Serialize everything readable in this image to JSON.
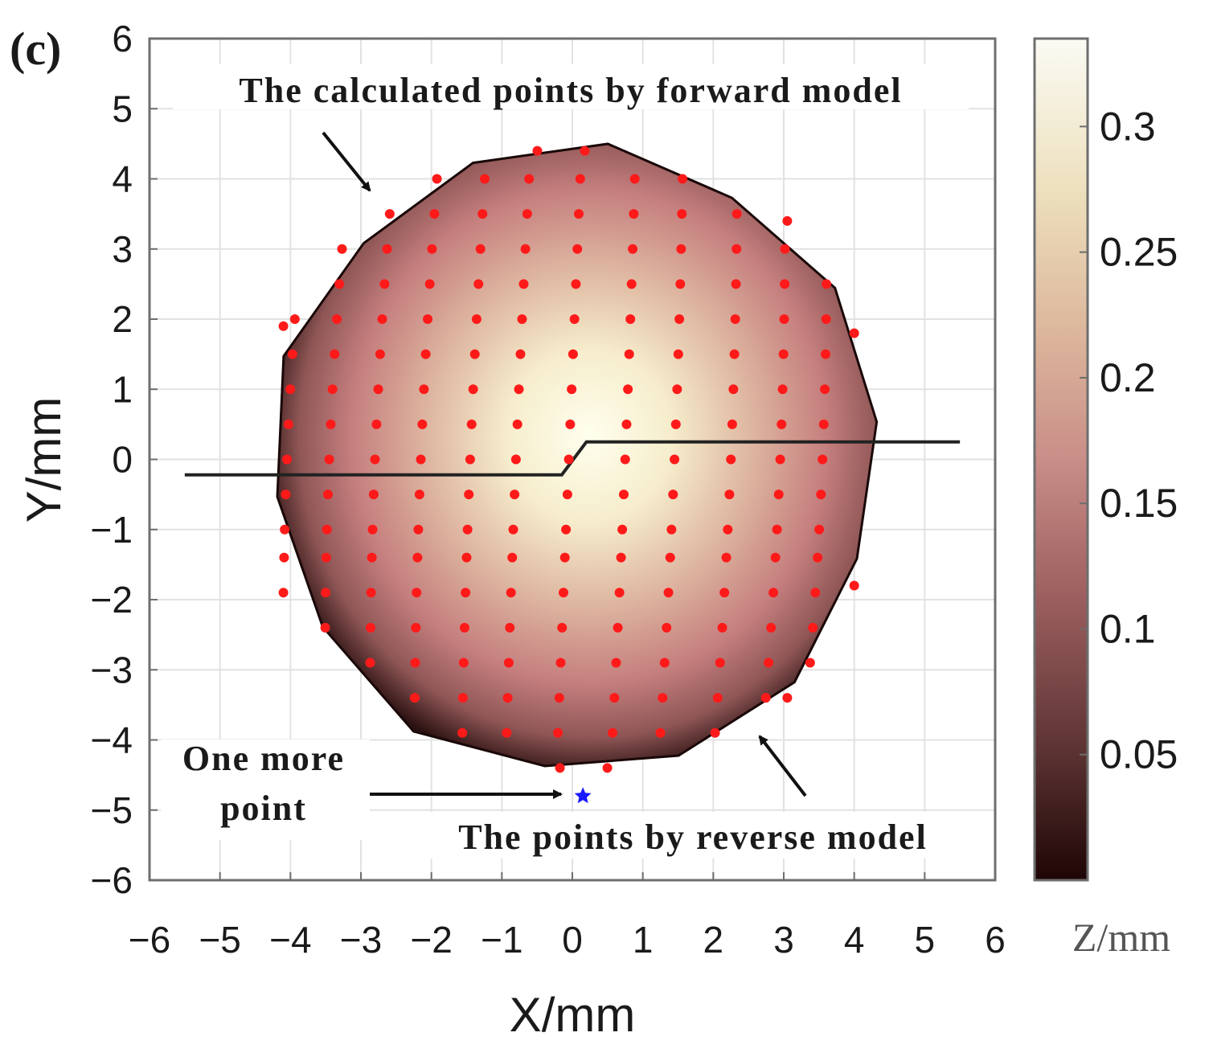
{
  "panel_label": "(c)",
  "colors": {
    "marker_forward": "#ff1a1a",
    "marker_extra": "#1a1aff",
    "colormap_low": "#1e0505",
    "colormap_mid": "#c46f70",
    "colormap_high": "#ffffec"
  },
  "chart_data": {
    "type": "scatter",
    "title": "",
    "xlabel": "X/mm",
    "ylabel": "Y/mm",
    "xlim": [
      -6,
      6
    ],
    "ylim": [
      -6,
      6
    ],
    "grid": true,
    "xticks": [
      "−6",
      "−5",
      "−4",
      "−3",
      "−2",
      "−1",
      "0",
      "1",
      "2",
      "3",
      "4",
      "5",
      "6"
    ],
    "yticks": [
      "6",
      "5",
      "4",
      "3",
      "2",
      "1",
      "0",
      "−1",
      "−2",
      "−3",
      "−4",
      "−5",
      "−6"
    ],
    "surface": {
      "shape": "circular",
      "radius_mm": 4.3,
      "z_min": 0.005,
      "z_max": 0.33
    },
    "colorbar": {
      "label": "Z/mm",
      "range": [
        0,
        0.335
      ],
      "ticks": [
        "0.3",
        "0.25",
        "0.2",
        "0.15",
        "0.1",
        "0.05"
      ],
      "tick_values": [
        0.3,
        0.25,
        0.2,
        0.15,
        0.1,
        0.05
      ]
    },
    "forward_grid": {
      "columns_x": [
        -4.05,
        -3.45,
        -2.8,
        -2.15,
        -1.45,
        -0.8,
        -0.05,
        0.75,
        1.45,
        2.25,
        2.95,
        3.55
      ],
      "bottom_offset_x": [
        -3.5,
        -2.8,
        -2.1,
        -1.4,
        -0.7,
        0,
        0.7,
        1.4,
        2.1,
        2.8
      ],
      "rows_y": [
        -4.4,
        -3.9,
        -3.4,
        -2.9,
        -2.4,
        -1.9,
        -1.4,
        -1.0,
        -0.5,
        0.0,
        0.5,
        1.0,
        1.5,
        2.0,
        2.5,
        3.0,
        3.5,
        4.0,
        4.4
      ],
      "max_radius": 4.45
    },
    "forward_points_extra": [
      {
        "x": 3.05,
        "y": 3.4
      },
      {
        "x": 3.05,
        "y": -3.4
      },
      {
        "x": 4.0,
        "y": 1.8
      },
      {
        "x": 4.0,
        "y": -1.8
      },
      {
        "x": -4.1,
        "y": 1.9
      },
      {
        "x": -4.1,
        "y": -1.9
      }
    ],
    "reverse_point": {
      "x": 0.15,
      "y": -4.8
    },
    "section_line": [
      {
        "x": -5.5,
        "y": -0.22
      },
      {
        "x": -0.15,
        "y": -0.22
      },
      {
        "x": 0.2,
        "y": 0.25
      },
      {
        "x": 5.5,
        "y": 0.25
      }
    ],
    "annotations": {
      "forward": "The calculated points by forward model",
      "reverse": "The points by reverse model",
      "extra_line1": "One more",
      "extra_line2": "point"
    }
  }
}
